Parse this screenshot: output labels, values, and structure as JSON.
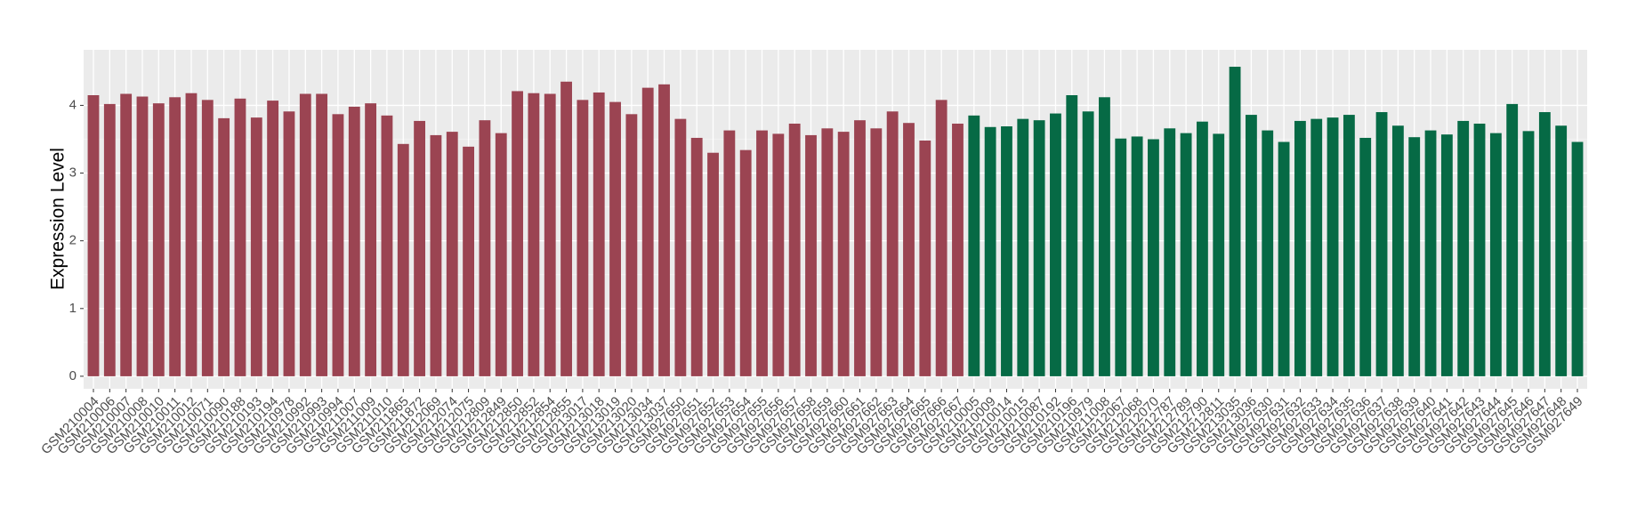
{
  "chart_data": {
    "type": "bar",
    "y_label": "Expression Level",
    "categories": [
      "GSM210004",
      "GSM210006",
      "GSM210007",
      "GSM210008",
      "GSM210010",
      "GSM210011",
      "GSM210012",
      "GSM210071",
      "GSM210090",
      "GSM210188",
      "GSM210193",
      "GSM210194",
      "GSM210978",
      "GSM210992",
      "GSM210993",
      "GSM210994",
      "GSM211007",
      "GSM211009",
      "GSM211010",
      "GSM211865",
      "GSM211872",
      "GSM212069",
      "GSM212074",
      "GSM212075",
      "GSM212809",
      "GSM212849",
      "GSM212850",
      "GSM212852",
      "GSM212854",
      "GSM212855",
      "GSM213017",
      "GSM213018",
      "GSM213019",
      "GSM213020",
      "GSM213034",
      "GSM213037",
      "GSM927650",
      "GSM927651",
      "GSM927652",
      "GSM927653",
      "GSM927654",
      "GSM927655",
      "GSM927656",
      "GSM927657",
      "GSM927658",
      "GSM927659",
      "GSM927660",
      "GSM927661",
      "GSM927662",
      "GSM927663",
      "GSM927664",
      "GSM927665",
      "GSM927666",
      "GSM927667",
      "GSM210005",
      "GSM210009",
      "GSM210014",
      "GSM210015",
      "GSM210087",
      "GSM210192",
      "GSM210196",
      "GSM210979",
      "GSM211008",
      "GSM212067",
      "GSM212068",
      "GSM212070",
      "GSM212787",
      "GSM212789",
      "GSM212790",
      "GSM212811",
      "GSM213035",
      "GSM213036",
      "GSM927630",
      "GSM927631",
      "GSM927632",
      "GSM927633",
      "GSM927634",
      "GSM927635",
      "GSM927636",
      "GSM927637",
      "GSM927638",
      "GSM927639",
      "GSM927640",
      "GSM927641",
      "GSM927642",
      "GSM927643",
      "GSM927644",
      "GSM927645",
      "GSM927646",
      "GSM927647",
      "GSM927648",
      "GSM927649"
    ],
    "values": [
      4.15,
      4.02,
      4.17,
      4.13,
      4.03,
      4.12,
      4.18,
      4.08,
      3.81,
      4.1,
      3.82,
      4.07,
      3.91,
      4.17,
      4.17,
      3.87,
      3.98,
      4.03,
      3.85,
      3.43,
      3.77,
      3.56,
      3.61,
      3.39,
      3.78,
      3.59,
      4.21,
      4.18,
      4.17,
      4.35,
      4.08,
      4.19,
      4.05,
      3.87,
      4.26,
      4.31,
      3.8,
      3.52,
      3.3,
      3.63,
      3.34,
      3.63,
      3.58,
      3.73,
      3.56,
      3.66,
      3.61,
      3.78,
      3.66,
      3.91,
      3.74,
      3.48,
      4.08,
      3.73,
      3.85,
      3.68,
      3.69,
      3.8,
      3.78,
      3.88,
      4.15,
      3.91,
      4.12,
      3.51,
      3.54,
      3.5,
      3.66,
      3.59,
      3.76,
      3.58,
      4.57,
      3.86,
      3.63,
      3.46,
      3.77,
      3.8,
      3.82,
      3.86,
      3.52,
      3.9,
      3.7,
      3.53,
      3.63,
      3.57,
      3.77,
      3.73,
      3.59,
      4.02,
      3.62,
      3.9,
      3.7,
      3.46
    ],
    "colors": [
      "#9b4452",
      "#9b4452",
      "#9b4452",
      "#9b4452",
      "#9b4452",
      "#9b4452",
      "#9b4452",
      "#9b4452",
      "#9b4452",
      "#9b4452",
      "#9b4452",
      "#9b4452",
      "#9b4452",
      "#9b4452",
      "#9b4452",
      "#9b4452",
      "#9b4452",
      "#9b4452",
      "#9b4452",
      "#9b4452",
      "#9b4452",
      "#9b4452",
      "#9b4452",
      "#9b4452",
      "#9b4452",
      "#9b4452",
      "#9b4452",
      "#9b4452",
      "#9b4452",
      "#9b4452",
      "#9b4452",
      "#9b4452",
      "#9b4452",
      "#9b4452",
      "#9b4452",
      "#9b4452",
      "#9b4452",
      "#9b4452",
      "#9b4452",
      "#9b4452",
      "#9b4452",
      "#9b4452",
      "#9b4452",
      "#9b4452",
      "#9b4452",
      "#9b4452",
      "#9b4452",
      "#9b4452",
      "#9b4452",
      "#9b4452",
      "#9b4452",
      "#9b4452",
      "#9b4452",
      "#9b4452",
      "#066a45",
      "#066a45",
      "#066a45",
      "#066a45",
      "#066a45",
      "#066a45",
      "#066a45",
      "#066a45",
      "#066a45",
      "#066a45",
      "#066a45",
      "#066a45",
      "#066a45",
      "#066a45",
      "#066a45",
      "#066a45",
      "#066a45",
      "#066a45",
      "#066a45",
      "#066a45",
      "#066a45",
      "#066a45",
      "#066a45",
      "#066a45",
      "#066a45",
      "#066a45",
      "#066a45",
      "#066a45",
      "#066a45",
      "#066a45",
      "#066a45",
      "#066a45",
      "#066a45",
      "#066a45",
      "#066a45",
      "#066a45",
      "#066a45",
      "#066a45"
    ],
    "ylim": [
      -0.185,
      4.82
    ],
    "yticks": [
      0,
      1,
      2,
      3,
      4
    ],
    "grid": true
  }
}
